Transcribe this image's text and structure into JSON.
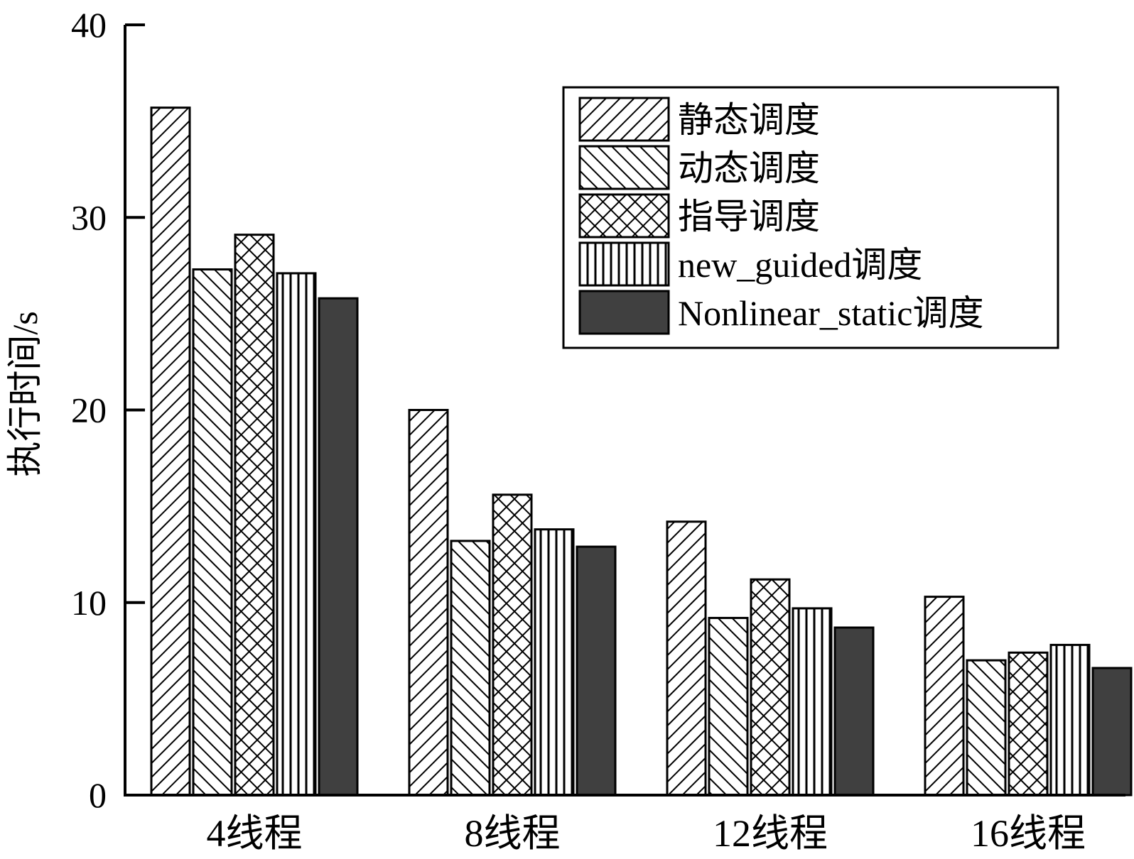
{
  "chart_data": {
    "type": "bar",
    "title": "",
    "xlabel": "",
    "ylabel": "执行时间/s",
    "ylim": [
      0,
      40
    ],
    "yticks": [
      0,
      10,
      20,
      30,
      40
    ],
    "grid": false,
    "legend_position": "top-right",
    "categories": [
      "4线程",
      "8线程",
      "12线程",
      "16线程"
    ],
    "series": [
      {
        "name": "静态调度",
        "pattern": "diagonal-forward",
        "color": "#ffffff",
        "values": [
          35.7,
          20.0,
          14.2,
          10.3
        ]
      },
      {
        "name": "动态调度",
        "pattern": "diagonal-backward",
        "color": "#ffffff",
        "values": [
          27.3,
          13.2,
          9.2,
          7.0
        ]
      },
      {
        "name": "指导调度",
        "pattern": "crosshatch",
        "color": "#ffffff",
        "values": [
          29.1,
          15.6,
          11.2,
          7.4
        ]
      },
      {
        "name": "new_guided调度",
        "pattern": "vertical",
        "color": "#ffffff",
        "values": [
          27.1,
          13.8,
          9.7,
          7.8
        ]
      },
      {
        "name": "Nonlinear_static调度",
        "pattern": "solid",
        "color": "#404040",
        "values": [
          25.8,
          12.9,
          8.7,
          6.6
        ]
      }
    ]
  }
}
